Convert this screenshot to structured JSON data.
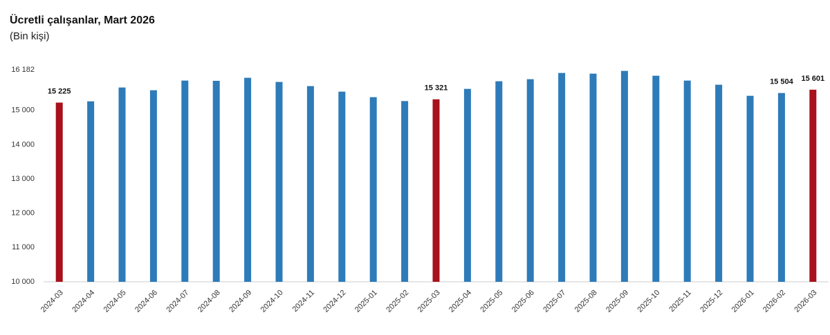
{
  "chart_data": {
    "type": "bar",
    "title": "Ücretli çalışanlar, Mart 2026",
    "subtitle": "(Bin kişi)",
    "categories": [
      "2024-03",
      "2024-04",
      "2024-05",
      "2024-06",
      "2024-07",
      "2024-08",
      "2024-09",
      "2024-10",
      "2024-11",
      "2024-12",
      "2025-01",
      "2025-02",
      "2025-03",
      "2025-04",
      "2025-05",
      "2025-06",
      "2025-07",
      "2025-08",
      "2025-09",
      "2025-10",
      "2025-11",
      "2025-12",
      "2026-01",
      "2026-02",
      "2026-03"
    ],
    "values": [
      15225,
      15262,
      15665,
      15585,
      15867,
      15860,
      15948,
      15827,
      15706,
      15544,
      15383,
      15270,
      15321,
      15625,
      15847,
      15907,
      16089,
      16069,
      16149,
      16008,
      15867,
      15746,
      15423,
      15504,
      15601
    ],
    "value_labels": [
      "15 225",
      null,
      null,
      null,
      null,
      null,
      null,
      null,
      null,
      null,
      null,
      null,
      "15 321",
      null,
      null,
      null,
      null,
      null,
      null,
      null,
      null,
      null,
      null,
      "15 504",
      "15 601"
    ],
    "colors": [
      "#a8121c",
      "#2e7bb9",
      "#2e7bb9",
      "#2e7bb9",
      "#2e7bb9",
      "#2e7bb9",
      "#2e7bb9",
      "#2e7bb9",
      "#2e7bb9",
      "#2e7bb9",
      "#2e7bb9",
      "#2e7bb9",
      "#a8121c",
      "#2e7bb9",
      "#2e7bb9",
      "#2e7bb9",
      "#2e7bb9",
      "#2e7bb9",
      "#2e7bb9",
      "#2e7bb9",
      "#2e7bb9",
      "#2e7bb9",
      "#2e7bb9",
      "#2e7bb9",
      "#a8121c"
    ],
    "ylim": [
      10000,
      16182
    ],
    "yticks": [
      {
        "value": 10000,
        "label": "10 000"
      },
      {
        "value": 11000,
        "label": "11 000"
      },
      {
        "value": 12000,
        "label": "12 000"
      },
      {
        "value": 13000,
        "label": "13 000"
      },
      {
        "value": 14000,
        "label": "14 000"
      },
      {
        "value": 15000,
        "label": "15 000"
      },
      {
        "value": 16182,
        "label": "16 182"
      }
    ],
    "grid": false
  }
}
